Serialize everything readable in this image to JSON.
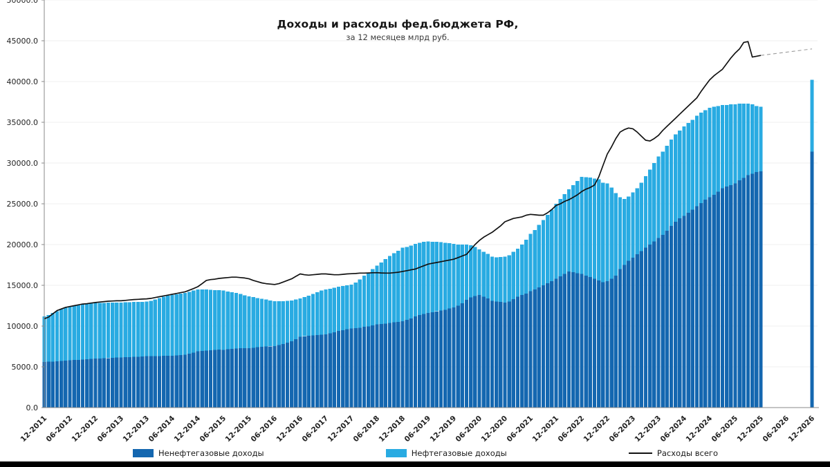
{
  "chart_data": {
    "type": "bar",
    "stacked": true,
    "title": "Доходы и расходы фед.бюджета РФ,",
    "subtitle": "за 12 месяцев млрд руб.",
    "grid": true,
    "legend_position": "bottom",
    "ylim": [
      0,
      50000
    ],
    "y_ticks": [
      0,
      5000,
      10000,
      15000,
      20000,
      25000,
      30000,
      35000,
      40000,
      45000,
      50000
    ],
    "y_tick_labels": [
      "0.0",
      "5000.0",
      "10000.0",
      "15000.0",
      "20000.0",
      "25000.0",
      "30000.0",
      "35000.0",
      "40000.0",
      "45000.0",
      "50000.0"
    ],
    "x_start": "12-2011",
    "x_end": "12-2026",
    "total_slots": 181,
    "x_label_every_n_months": 6,
    "x_tick_labels": [
      "12-2011",
      "06-2012",
      "12-2012",
      "06-2013",
      "12-2013",
      "06-2014",
      "12-2014",
      "06-2015",
      "12-2015",
      "06-2016",
      "12-2016",
      "06-2017",
      "12-2017",
      "06-2018",
      "12-2018",
      "06-2019",
      "12-2019",
      "06-2020",
      "12-2020",
      "06-2021",
      "12-2021",
      "06-2022",
      "12-2022",
      "06-2023",
      "12-2023",
      "06-2024",
      "12-2024",
      "06-2025",
      "12-2025",
      "06-2026",
      "12-2026"
    ],
    "series": [
      {
        "name": "Ненефтегазовые доходы",
        "type": "bar",
        "color": "#1467b0",
        "values": [
          5600,
          5620,
          5650,
          5680,
          5720,
          5760,
          5800,
          5830,
          5860,
          5900,
          5930,
          5970,
          6000,
          6020,
          6050,
          6080,
          6100,
          6130,
          6150,
          6180,
          6200,
          6230,
          6250,
          6280,
          6300,
          6310,
          6320,
          6330,
          6340,
          6350,
          6350,
          6400,
          6450,
          6500,
          6600,
          6750,
          6900,
          6950,
          7000,
          7050,
          7080,
          7100,
          7100,
          7150,
          7200,
          7250,
          7270,
          7280,
          7300,
          7350,
          7400,
          7450,
          7500,
          7520,
          7550,
          7650,
          7800,
          7950,
          8150,
          8400,
          8700,
          8750,
          8800,
          8850,
          8900,
          8950,
          9000,
          9100,
          9250,
          9400,
          9500,
          9600,
          9700,
          9750,
          9800,
          9900,
          9950,
          10100,
          10200,
          10250,
          10300,
          10400,
          10450,
          10500,
          10600,
          10750,
          10950,
          11200,
          11350,
          11500,
          11600,
          11700,
          11800,
          11900,
          12000,
          12150,
          12300,
          12500,
          12800,
          13200,
          13500,
          13700,
          13800,
          13600,
          13400,
          13100,
          13000,
          12950,
          12900,
          13000,
          13300,
          13600,
          13800,
          14000,
          14300,
          14500,
          14750,
          15000,
          15250,
          15500,
          15800,
          16100,
          16400,
          16700,
          16600,
          16500,
          16400,
          16200,
          16000,
          15800,
          15600,
          15400,
          15500,
          15800,
          16200,
          17000,
          17500,
          18000,
          18400,
          18800,
          19200,
          19600,
          20000,
          20400,
          20800,
          21200,
          21700,
          22300,
          22800,
          23200,
          23500,
          23900,
          24300,
          24700,
          25100,
          25500,
          25800,
          26100,
          26500,
          26900,
          27100,
          27300,
          27500,
          27900,
          28200,
          28500,
          28700,
          28900,
          29000
        ]
      },
      {
        "name": "Нефтегазовые доходы",
        "type": "bar",
        "color": "#29abe2",
        "values": [
          5600,
          5750,
          5950,
          6150,
          6350,
          6500,
          6600,
          6650,
          6700,
          6750,
          6800,
          6830,
          6850,
          6830,
          6810,
          6790,
          6770,
          6760,
          6750,
          6740,
          6730,
          6720,
          6710,
          6705,
          6700,
          6800,
          6950,
          7100,
          7250,
          7370,
          7450,
          7500,
          7550,
          7580,
          7600,
          7600,
          7600,
          7550,
          7480,
          7400,
          7330,
          7290,
          7250,
          7100,
          6950,
          6800,
          6650,
          6500,
          6350,
          6200,
          6050,
          5900,
          5750,
          5620,
          5500,
          5380,
          5260,
          5150,
          5000,
          4850,
          4700,
          4800,
          4950,
          5100,
          5250,
          5400,
          5500,
          5480,
          5460,
          5440,
          5420,
          5410,
          5400,
          5600,
          5900,
          6300,
          6600,
          6900,
          7200,
          7550,
          7900,
          8200,
          8500,
          8750,
          9000,
          8950,
          8920,
          8900,
          8880,
          8840,
          8800,
          8650,
          8520,
          8400,
          8200,
          8000,
          7800,
          7500,
          7200,
          6800,
          6400,
          6000,
          5600,
          5500,
          5450,
          5400,
          5450,
          5520,
          5600,
          5700,
          5800,
          5900,
          6200,
          6600,
          7000,
          7300,
          7650,
          8000,
          8400,
          8800,
          9200,
          9500,
          9800,
          10100,
          10700,
          11300,
          11900,
          12050,
          12200,
          12300,
          12400,
          12200,
          12000,
          11200,
          10100,
          8800,
          8100,
          7900,
          8000,
          8100,
          8400,
          8800,
          9200,
          9600,
          10000,
          10200,
          10400,
          10600,
          10700,
          10800,
          11000,
          11000,
          11000,
          11100,
          11100,
          11000,
          11000,
          10800,
          10500,
          10200,
          10000,
          9900,
          9700,
          9400,
          9100,
          8800,
          8500,
          8100,
          7900
        ]
      },
      {
        "name": "Расходы всего",
        "type": "line",
        "color": "#111111",
        "values": [
          10900,
          11100,
          11500,
          11900,
          12100,
          12300,
          12400,
          12500,
          12600,
          12700,
          12750,
          12820,
          12890,
          12950,
          13000,
          13050,
          13080,
          13100,
          13100,
          13150,
          13200,
          13250,
          13280,
          13310,
          13340,
          13400,
          13500,
          13600,
          13700,
          13800,
          13900,
          14000,
          14100,
          14200,
          14400,
          14600,
          14830,
          15200,
          15600,
          15700,
          15750,
          15850,
          15900,
          15950,
          16000,
          16000,
          15950,
          15900,
          15800,
          15600,
          15450,
          15300,
          15200,
          15150,
          15100,
          15200,
          15400,
          15600,
          15800,
          16100,
          16400,
          16300,
          16250,
          16300,
          16350,
          16400,
          16400,
          16350,
          16300,
          16300,
          16350,
          16400,
          16420,
          16450,
          16500,
          16500,
          16520,
          16540,
          16550,
          16520,
          16500,
          16500,
          16550,
          16600,
          16700,
          16800,
          16900,
          17000,
          17200,
          17400,
          17600,
          17700,
          17800,
          17900,
          18000,
          18100,
          18200,
          18400,
          18600,
          18800,
          19400,
          20000,
          20500,
          20900,
          21200,
          21500,
          21900,
          22300,
          22800,
          23000,
          23200,
          23300,
          23400,
          23600,
          23700,
          23650,
          23600,
          23600,
          23900,
          24300,
          24800,
          25000,
          25300,
          25500,
          25800,
          26100,
          26500,
          26800,
          27000,
          27300,
          28300,
          29700,
          31100,
          32000,
          33000,
          33800,
          34100,
          34300,
          34200,
          33800,
          33300,
          32800,
          32700,
          33000,
          33400,
          34000,
          34500,
          35000,
          35500,
          36000,
          36500,
          37000,
          37500,
          38000,
          38800,
          39500,
          40200,
          40700,
          41100,
          41500,
          42200,
          42900,
          43500,
          44000,
          44800,
          44900,
          43000,
          43100,
          43200
        ]
      }
    ],
    "forecast": {
      "index": 180,
      "label": "12-2026",
      "non_oil": 31400,
      "oil": 8800,
      "expenses": 44000,
      "line_style": "dashed",
      "line_color": "#9b9b9b"
    },
    "legend": [
      {
        "label": "Ненефтегазовые доходы",
        "color": "#1467b0",
        "marker": "square"
      },
      {
        "label": "Нефтегазовые доходы",
        "color": "#29abe2",
        "marker": "square"
      },
      {
        "label": "Расходы всего",
        "color": "#111111",
        "marker": "line"
      }
    ],
    "axis_color": "#8a8a8a",
    "grid_color": "#efefef",
    "tick_label_color": "#222222"
  }
}
